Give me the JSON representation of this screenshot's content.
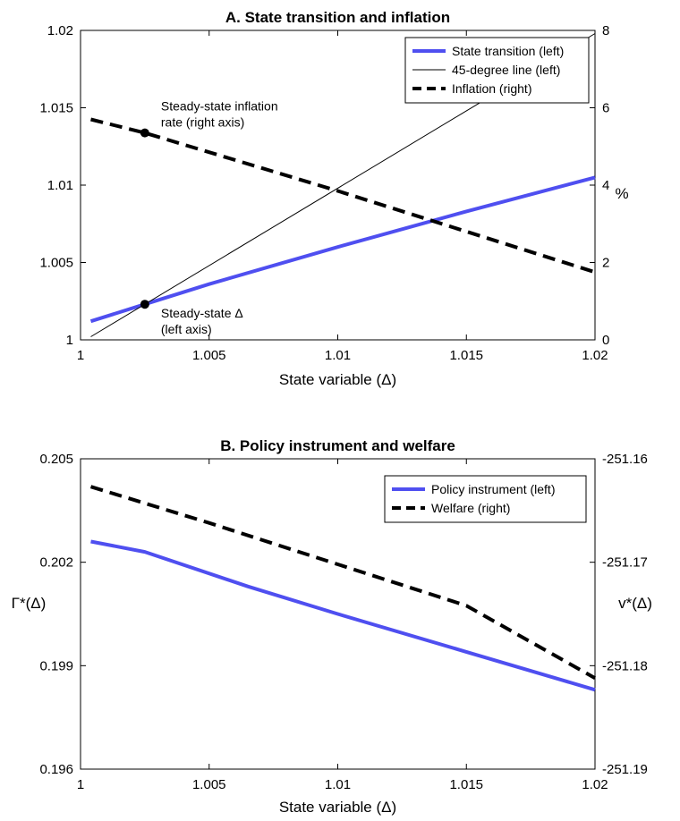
{
  "chart_data": [
    {
      "type": "line",
      "title": "A. State transition and inflation",
      "xlabel": "State variable (Δ)",
      "ylabel_left": "",
      "ylabel_right": "%",
      "xlim": [
        1,
        1.02
      ],
      "ylim_left": [
        1,
        1.02
      ],
      "ylim_right": [
        0,
        8
      ],
      "x_ticks": [
        "1",
        "1.005",
        "1.01",
        "1.015",
        "1.02"
      ],
      "y_ticks_left": [
        "1",
        "1.005",
        "1.01",
        "1.015",
        "1.02"
      ],
      "y_ticks_right": [
        "0",
        "2",
        "4",
        "6",
        "8"
      ],
      "legend_position": "top-right",
      "series": [
        {
          "name": "State transition (left)",
          "axis": "left",
          "color": "#4f4ff0",
          "style": "thick",
          "x": [
            1.0004,
            1.0025,
            1.005,
            1.01,
            1.015,
            1.02
          ],
          "y": [
            1.0012,
            1.0023,
            1.0036,
            1.006,
            1.0083,
            1.0105
          ]
        },
        {
          "name": "45-degree line (left)",
          "axis": "left",
          "color": "#000000",
          "style": "thin",
          "x": [
            1.0004,
            1.02
          ],
          "y": [
            1.0002,
            1.0198
          ]
        },
        {
          "name": "Inflation (right)",
          "axis": "right",
          "color": "#000000",
          "style": "dashed",
          "x": [
            1.0004,
            1.0025,
            1.005,
            1.01,
            1.015,
            1.02
          ],
          "y": [
            5.7,
            5.35,
            4.85,
            3.85,
            2.8,
            1.75
          ]
        }
      ],
      "annotations": [
        {
          "text": [
            "Steady-state inflation",
            "rate (right axis)"
          ],
          "point": {
            "axis": "right",
            "x": 1.0025,
            "y": 5.35
          }
        },
        {
          "text": [
            "Steady-state Δ",
            "(left axis)"
          ],
          "point": {
            "axis": "left",
            "x": 1.0025,
            "y": 1.0023
          }
        }
      ]
    },
    {
      "type": "line",
      "title": "B. Policy instrument and welfare",
      "xlabel": "State variable (Δ)",
      "ylabel_left": "Γ*(Δ)",
      "ylabel_right": "v*(Δ)",
      "xlim": [
        1,
        1.02
      ],
      "ylim_left": [
        0.196,
        0.205
      ],
      "ylim_right": [
        -251.19,
        -251.16
      ],
      "x_ticks": [
        "1",
        "1.005",
        "1.01",
        "1.015",
        "1.02"
      ],
      "y_ticks_left": [
        "0.196",
        "0.199",
        "0.202",
        "0.205"
      ],
      "y_ticks_right": [
        "-251.19",
        "-251.18",
        "-251.17",
        "-251.16"
      ],
      "legend_position": "top-right",
      "series": [
        {
          "name": "Policy instrument (left)",
          "axis": "left",
          "color": "#4f4ff0",
          "style": "thick",
          "x": [
            1.0004,
            1.0025,
            1.0065,
            1.01,
            1.015,
            1.02
          ],
          "y": [
            0.2026,
            0.2023,
            0.2013,
            0.2005,
            0.1994,
            0.1983
          ]
        },
        {
          "name": "Welfare (right)",
          "axis": "right",
          "color": "#000000",
          "style": "dashed",
          "x": [
            1.0004,
            1.005,
            1.01,
            1.015,
            1.02
          ],
          "y": [
            -251.1627,
            -251.1662,
            -251.1702,
            -251.1742,
            -251.1812
          ]
        }
      ]
    }
  ]
}
